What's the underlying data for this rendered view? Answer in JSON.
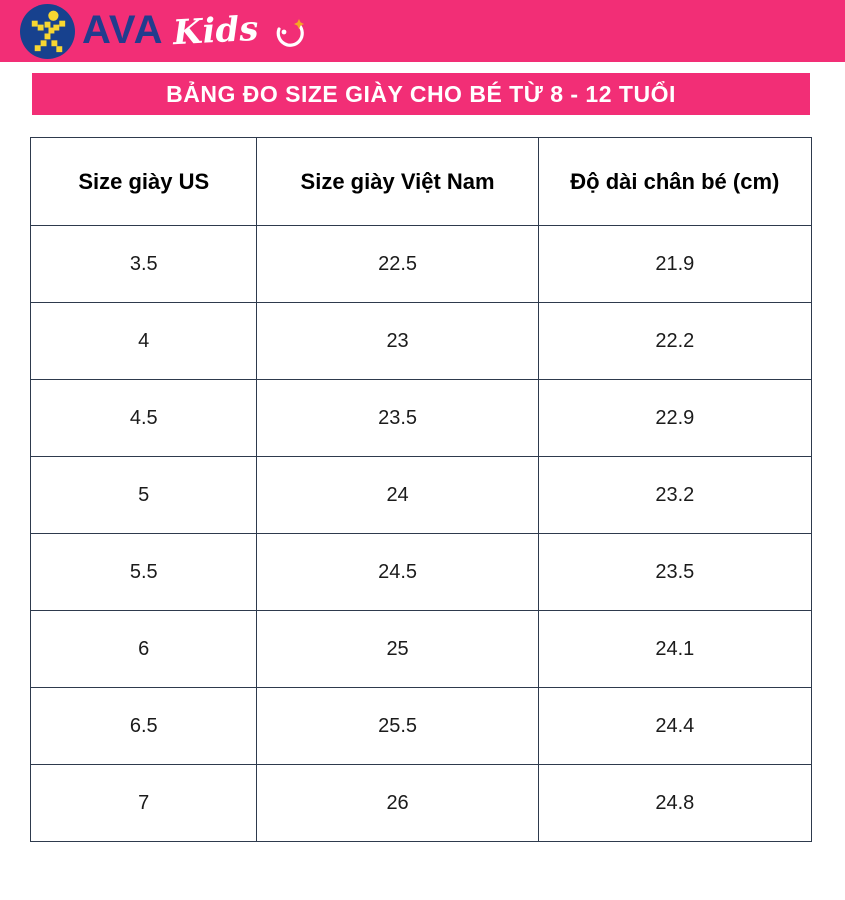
{
  "brand": {
    "name_primary": "AVA",
    "name_secondary": "Kids",
    "icons": {
      "runner": "pixel-runner-icon",
      "smiley": "winking-smiley-icon"
    },
    "colors": {
      "pink": "#F22E76",
      "navy": "#223C8D",
      "logo_blue": "#17418E",
      "yellow": "#F7D631",
      "table_border": "#2E3A4D"
    }
  },
  "banner": {
    "title": "BẢNG ĐO SIZE GIÀY CHO BÉ TỪ 8 - 12 TUỔI"
  },
  "table": {
    "headers": [
      "Size giày US",
      "Size giày Việt Nam",
      "Độ dài chân bé (cm)"
    ],
    "rows": [
      [
        "3.5",
        "22.5",
        "21.9"
      ],
      [
        "4",
        "23",
        "22.2"
      ],
      [
        "4.5",
        "23.5",
        "22.9"
      ],
      [
        "5",
        "24",
        "23.2"
      ],
      [
        "5.5",
        "24.5",
        "23.5"
      ],
      [
        "6",
        "25",
        "24.1"
      ],
      [
        "6.5",
        "25.5",
        "24.4"
      ],
      [
        "7",
        "26",
        "24.8"
      ]
    ]
  }
}
